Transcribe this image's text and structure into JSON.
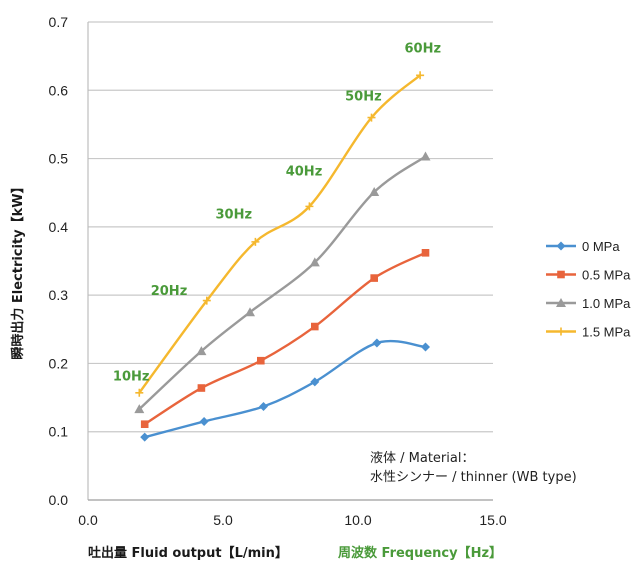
{
  "chart_data": {
    "type": "line",
    "xlabel": "吐出量 Fluid output【L/min】",
    "xlabel_freq": "周波数 Frequency【Hz】",
    "ylabel": "瞬時出力 Electricity【kW】",
    "xlim": [
      0,
      15
    ],
    "ylim": [
      0,
      0.7
    ],
    "x_ticks": [
      "0.0",
      "5.0",
      "10.0",
      "15.0"
    ],
    "y_ticks": [
      "0.0",
      "0.1",
      "0.2",
      "0.3",
      "0.4",
      "0.5",
      "0.6",
      "0.7"
    ],
    "grid": "horizontal",
    "legend_position": "right",
    "series": [
      {
        "name": "0 MPa",
        "color": "#4a90d0",
        "marker": "diamond",
        "points": [
          [
            2.1,
            0.092
          ],
          [
            4.3,
            0.115
          ],
          [
            6.5,
            0.137
          ],
          [
            8.4,
            0.173
          ],
          [
            10.7,
            0.23
          ],
          [
            12.5,
            0.224
          ]
        ]
      },
      {
        "name": "0.5 MPa",
        "color": "#e8643c",
        "marker": "square",
        "points": [
          [
            2.1,
            0.111
          ],
          [
            4.2,
            0.164
          ],
          [
            6.4,
            0.204
          ],
          [
            8.4,
            0.254
          ],
          [
            10.6,
            0.325
          ],
          [
            12.5,
            0.362
          ]
        ]
      },
      {
        "name": "1.0 MPa",
        "color": "#9a9a9a",
        "marker": "triangle",
        "points": [
          [
            1.9,
            0.133
          ],
          [
            4.2,
            0.218
          ],
          [
            6.0,
            0.275
          ],
          [
            8.4,
            0.348
          ],
          [
            10.6,
            0.451
          ],
          [
            12.5,
            0.503
          ]
        ]
      },
      {
        "name": "1.5 MPa",
        "color": "#f5b82e",
        "marker": "cross",
        "points": [
          [
            1.9,
            0.157
          ],
          [
            4.4,
            0.292
          ],
          [
            6.2,
            0.378
          ],
          [
            8.2,
            0.43
          ],
          [
            10.5,
            0.56
          ],
          [
            12.3,
            0.622
          ]
        ]
      }
    ],
    "frequency_labels": [
      {
        "text": "10Hz",
        "x": 1.6,
        "y": 0.175
      },
      {
        "text": "20Hz",
        "x": 3.0,
        "y": 0.3
      },
      {
        "text": "30Hz",
        "x": 5.4,
        "y": 0.412
      },
      {
        "text": "40Hz",
        "x": 8.0,
        "y": 0.475
      },
      {
        "text": "50Hz",
        "x": 10.2,
        "y": 0.585
      },
      {
        "text": "60Hz",
        "x": 12.4,
        "y": 0.655
      }
    ],
    "annotation": {
      "line1": "液体 / Material：",
      "line2": "水性シンナー / thinner (WB type)"
    }
  }
}
